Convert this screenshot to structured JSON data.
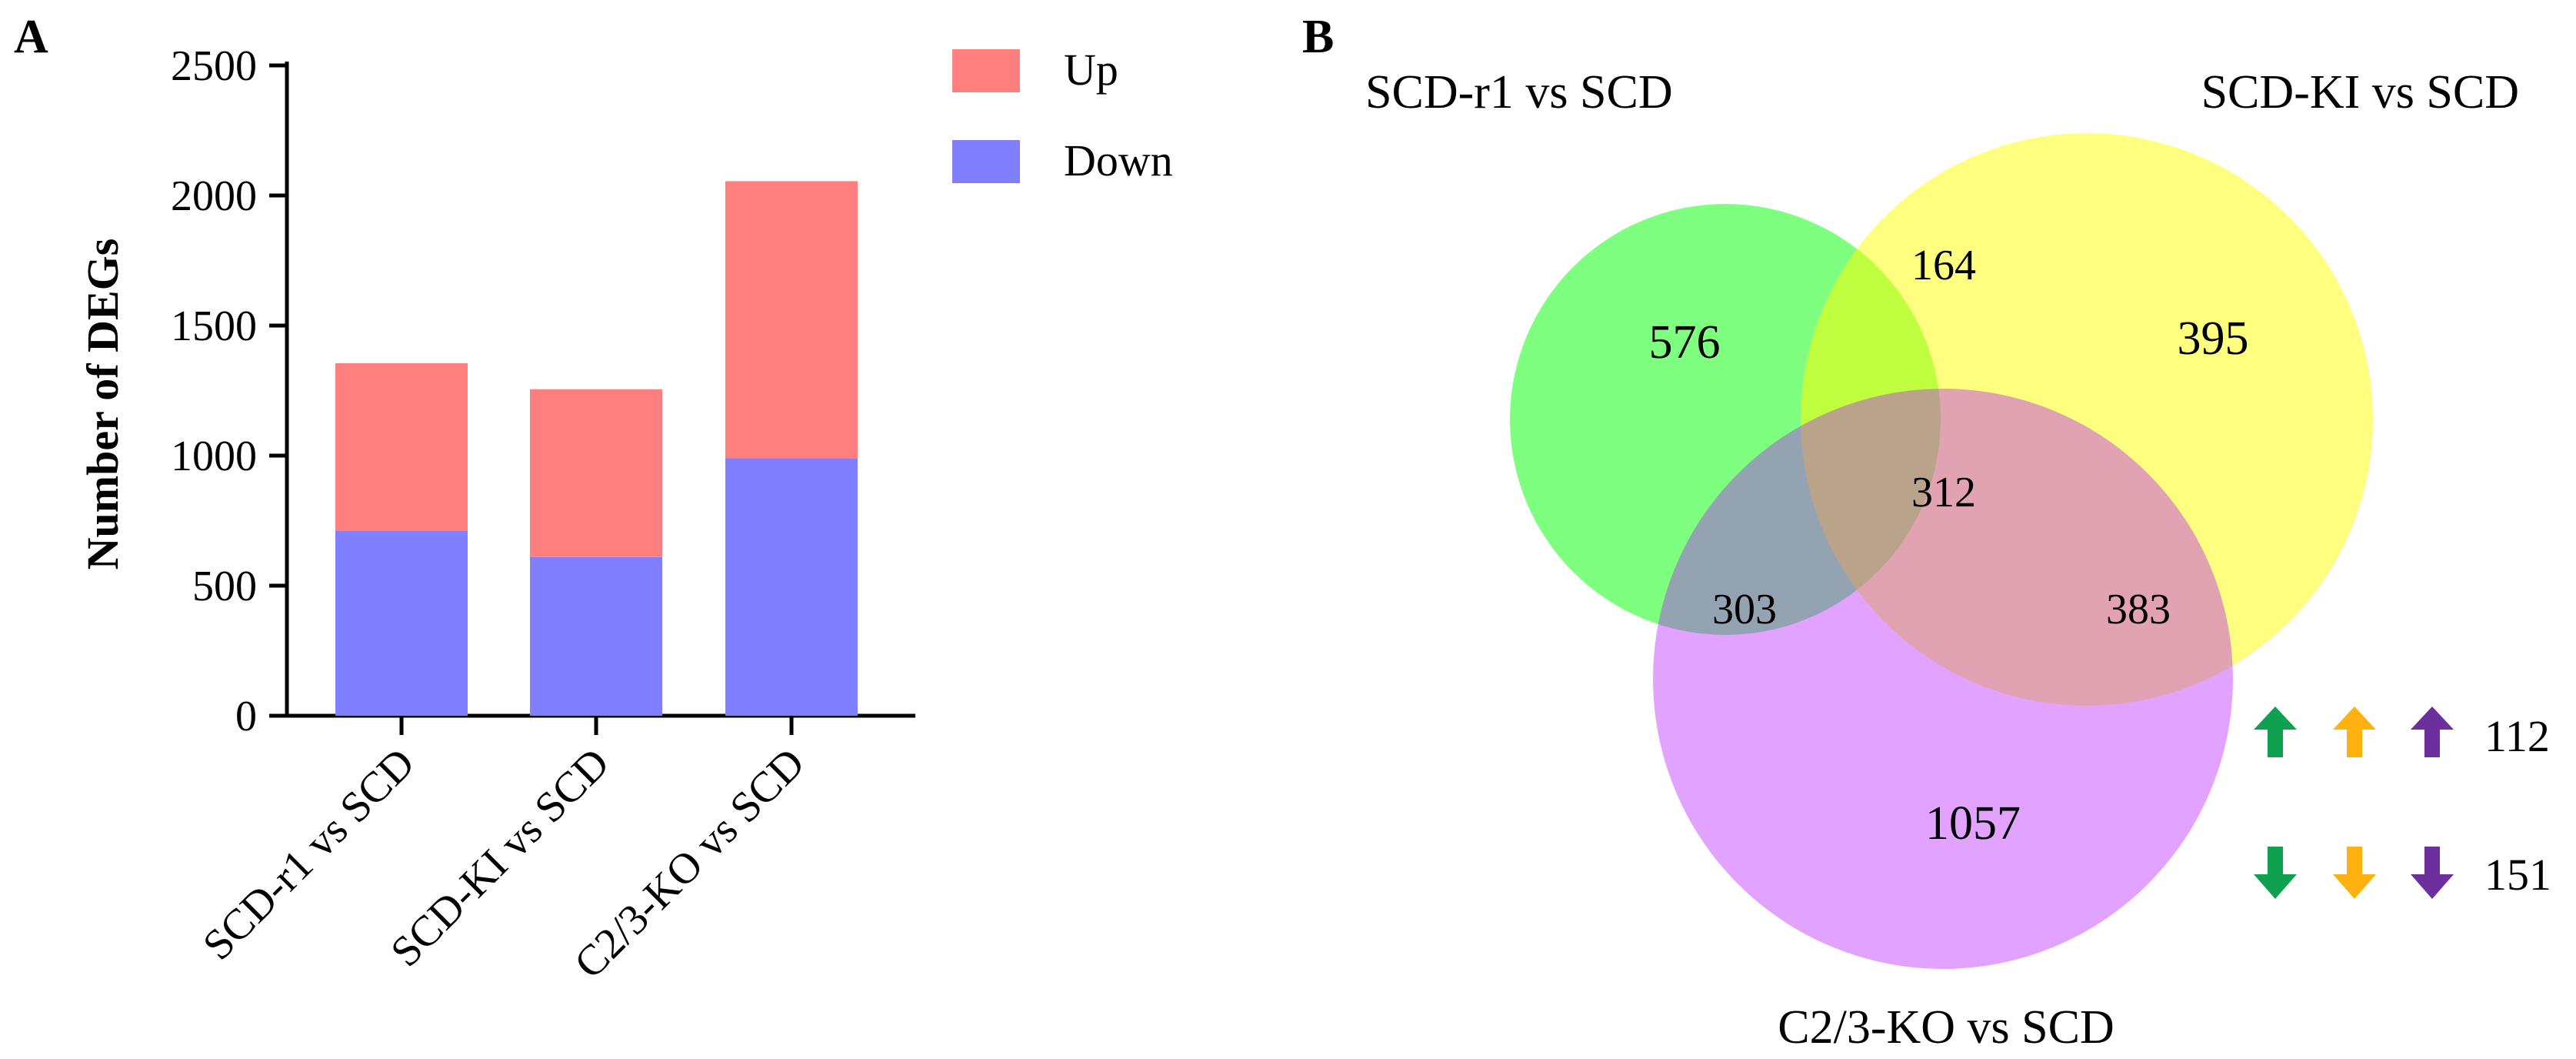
{
  "panels": {
    "a": {
      "label": "A"
    },
    "b": {
      "label": "B"
    }
  },
  "colors": {
    "up": "#ff7f7f",
    "down": "#7f7fff",
    "venn_a": "#00ff00",
    "venn_b": "#ffff00",
    "venn_c": "#b31aff",
    "arrow_green": "#0fa14f",
    "arrow_orange": "#ffb20f",
    "arrow_purple": "#6d2f9e"
  },
  "chart_data": [
    {
      "type": "bar",
      "stacked": true,
      "categories": [
        "SCD-r1 vs SCD",
        "SCD-KI vs SCD",
        "C2/3-KO vs SCD"
      ],
      "series": [
        {
          "name": "Down",
          "values": [
            710,
            610,
            990
          ]
        },
        {
          "name": "Up",
          "values": [
            645,
            645,
            1065
          ]
        }
      ],
      "title": "",
      "xlabel": "",
      "ylabel": "Number of DEGs",
      "ylim": [
        0,
        2500
      ],
      "yticks": [
        0,
        500,
        1000,
        1500,
        2000,
        2500
      ],
      "legend": [
        "Up",
        "Down"
      ],
      "legend_position": "top-right",
      "grid": false
    },
    {
      "type": "venn",
      "sets": [
        {
          "name": "SCD-r1 vs SCD",
          "color": "#00ff00"
        },
        {
          "name": "SCD-KI vs SCD",
          "color": "#ffff00"
        },
        {
          "name": "C2/3-KO vs SCD",
          "color": "#b31aff"
        }
      ],
      "regions": [
        {
          "id": "r1_only",
          "value": 576
        },
        {
          "id": "ki_only",
          "value": 395
        },
        {
          "id": "ko_only",
          "value": 1057
        },
        {
          "id": "r1_ki",
          "value": 164
        },
        {
          "id": "r1_ko",
          "value": 303
        },
        {
          "id": "ki_ko",
          "value": 383
        },
        {
          "id": "r1_ki_ko",
          "value": 312
        }
      ],
      "direction_summary": [
        {
          "direction": "up",
          "value": 112
        },
        {
          "direction": "down",
          "value": 151
        }
      ]
    }
  ]
}
